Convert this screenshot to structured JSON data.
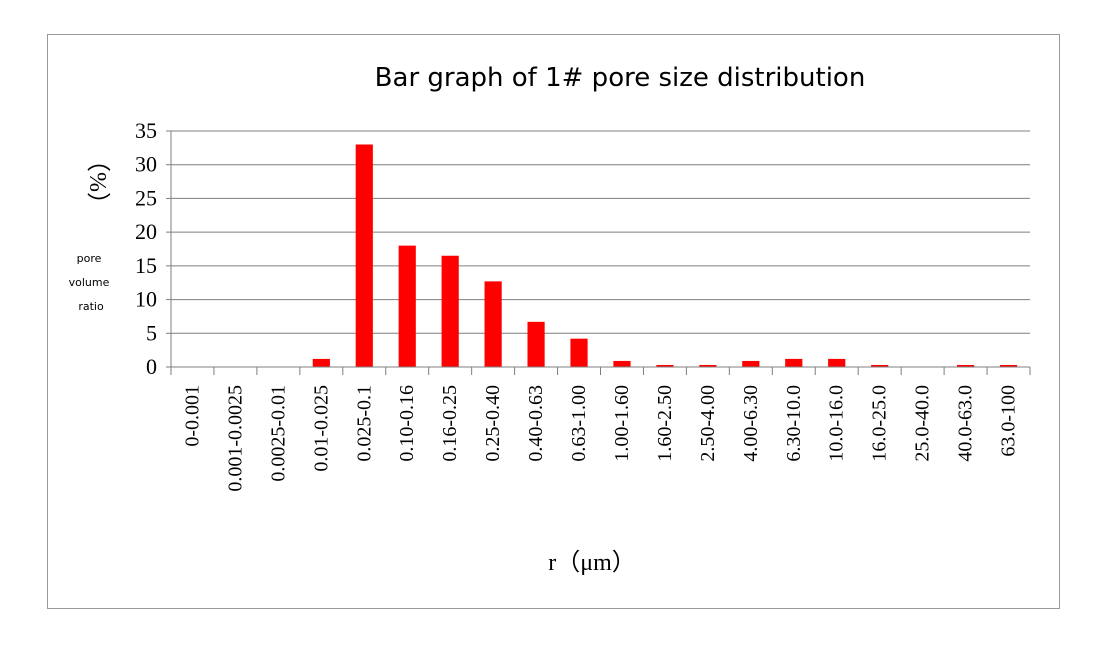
{
  "chart_data": {
    "type": "bar",
    "title": "Bar graph of 1# pore size distribution",
    "ylabel_unit": "（%）",
    "ylabel_lines": [
      "pore",
      "volume",
      "ratio"
    ],
    "xlabel": "r（μm）",
    "ylim": [
      0,
      35
    ],
    "yticks": [
      0,
      5,
      10,
      15,
      20,
      25,
      30,
      35
    ],
    "grid": true,
    "bar_color": "#ff0000",
    "categories": [
      "0-0.001",
      "0.001-0.0025",
      "0.0025-0.01",
      "0.01-0.025",
      "0.025-0.1",
      "0.10-0.16",
      "0.16-0.25",
      "0.25-0.40",
      "0.40-0.63",
      "0.63-1.00",
      "1.00-1.60",
      "1.60-2.50",
      "2.50-4.00",
      "4.00-6.30",
      "6.30-10.0",
      "10.0-16.0",
      "16.0-25.0",
      "25.0-40.0",
      "40.0-63.0",
      "63.0-100"
    ],
    "values": [
      0,
      0,
      0,
      1.2,
      33,
      18,
      16.5,
      12.7,
      6.7,
      4.2,
      0.9,
      0.3,
      0.3,
      0.9,
      1.2,
      1.2,
      0.3,
      0,
      0.3,
      0.3
    ]
  }
}
